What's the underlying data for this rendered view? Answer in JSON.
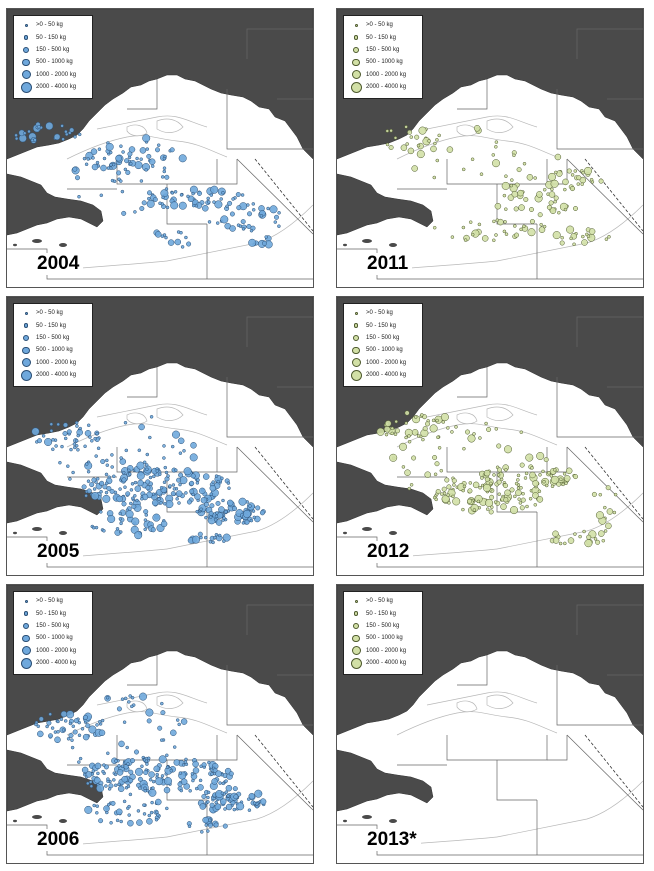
{
  "legend": {
    "items": [
      {
        "label": ">0 - 50 kg",
        "size": 3
      },
      {
        "label": "50 - 150 kg",
        "size": 4.5
      },
      {
        "label": "150 - 500 kg",
        "size": 6
      },
      {
        "label": "500 - 1000 kg",
        "size": 7.5
      },
      {
        "label": "1000 - 2000 kg",
        "size": 9
      },
      {
        "label": "2000 - 4000 kg",
        "size": 11
      }
    ]
  },
  "colors": {
    "land": "#4a4a4a",
    "water": "#ffffff",
    "blue_fill": "#6fa8dc",
    "blue_stroke": "#2b4f75",
    "green_fill": "#d2e0a6",
    "green_stroke": "#4e5a2e"
  },
  "panels": [
    {
      "id": "p2004",
      "year": "2004",
      "series": "blue",
      "pattern": "moderate-southeast"
    },
    {
      "id": "p2011",
      "year": "2011",
      "series": "green",
      "pattern": "diagonal-band"
    },
    {
      "id": "p2005",
      "year": "2005",
      "series": "blue",
      "pattern": "dense-central"
    },
    {
      "id": "p2012",
      "year": "2012",
      "series": "green",
      "pattern": "diagonal-band-dense"
    },
    {
      "id": "p2006",
      "year": "2006",
      "series": "blue",
      "pattern": "dense-central"
    },
    {
      "id": "p2013",
      "year": "2013*",
      "series": "green",
      "pattern": "empty"
    }
  ]
}
